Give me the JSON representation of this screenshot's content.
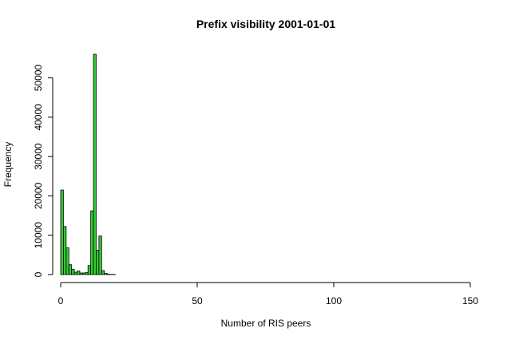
{
  "chart_data": {
    "type": "bar",
    "title": "Prefix visibility 2001-01-01",
    "xlabel": "Number of RIS peers",
    "ylabel": "Frequency",
    "bar_color": "#33cc33",
    "bar_stroke": "#000000",
    "xlim": [
      0,
      150
    ],
    "ylim": [
      0,
      56000
    ],
    "x_ticks": [
      0,
      50,
      100,
      150
    ],
    "y_ticks": [
      0,
      10000,
      20000,
      30000,
      40000,
      50000
    ],
    "grid": false,
    "bin_width": 1,
    "bins": [
      {
        "x": 0,
        "value": 21500
      },
      {
        "x": 1,
        "value": 12200
      },
      {
        "x": 2,
        "value": 6800
      },
      {
        "x": 3,
        "value": 2500
      },
      {
        "x": 4,
        "value": 1300
      },
      {
        "x": 5,
        "value": 600
      },
      {
        "x": 6,
        "value": 900
      },
      {
        "x": 7,
        "value": 400
      },
      {
        "x": 8,
        "value": 400
      },
      {
        "x": 9,
        "value": 500
      },
      {
        "x": 10,
        "value": 2300
      },
      {
        "x": 11,
        "value": 16200
      },
      {
        "x": 12,
        "value": 56000
      },
      {
        "x": 13,
        "value": 6200
      },
      {
        "x": 14,
        "value": 9800
      },
      {
        "x": 15,
        "value": 1000
      },
      {
        "x": 16,
        "value": 300
      },
      {
        "x": 17,
        "value": 100
      },
      {
        "x": 18,
        "value": 50
      },
      {
        "x": 19,
        "value": 50
      }
    ],
    "trailing_bins": {
      "from": 20,
      "to": 150,
      "value": 0
    }
  }
}
